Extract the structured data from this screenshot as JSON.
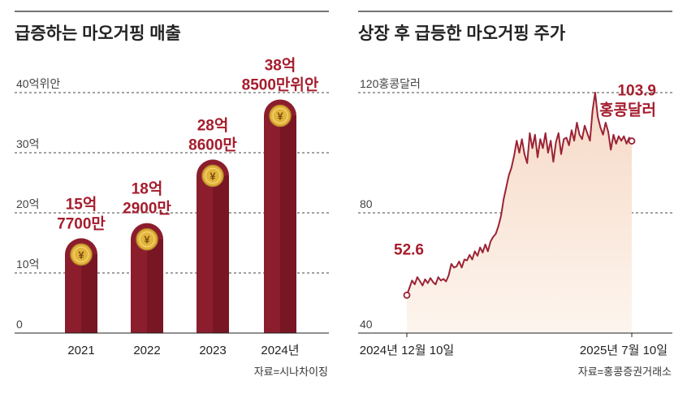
{
  "chart_data": [
    {
      "type": "bar",
      "title": "급증하는 마오거핑 매출",
      "unit_label": "40억위안",
      "yticks": [
        {
          "value": 0,
          "label": "0"
        },
        {
          "value": 10,
          "label": "10억"
        },
        {
          "value": 20,
          "label": "20억"
        },
        {
          "value": 30,
          "label": "30억"
        },
        {
          "value": 40,
          "label": "40억위안"
        }
      ],
      "ylim": [
        0,
        40
      ],
      "categories": [
        "2021",
        "2022",
        "2023",
        "2024년"
      ],
      "values": [
        15.77,
        18.29,
        28.86,
        38.85
      ],
      "data_labels": [
        [
          "15억",
          "7700만"
        ],
        [
          "18억",
          "2900만"
        ],
        [
          "28억",
          "8600만"
        ],
        [
          "38억",
          "8500만위안"
        ]
      ],
      "grid": true,
      "source": "자료=시나차이징"
    },
    {
      "type": "area",
      "title": "상장 후 급등한 마오거핑 주가",
      "yticks": [
        {
          "value": 40,
          "label": "40"
        },
        {
          "value": 80,
          "label": "80"
        },
        {
          "value": 120,
          "label": "120홍콩달러"
        }
      ],
      "ylim": [
        40,
        120
      ],
      "xlabels": [
        "2024년 12월 10일",
        "2025년 7월 10일"
      ],
      "start": {
        "value": 52.6,
        "label": "52.6"
      },
      "end": {
        "value": 103.9,
        "label": [
          "103.9",
          "홍콩달러"
        ]
      },
      "values": [
        52.6,
        55.0,
        57.5,
        56.2,
        58.6,
        57.3,
        55.8,
        57.9,
        56.6,
        58.3,
        57.0,
        56.2,
        58.6,
        57.5,
        58.0,
        57.2,
        59.2,
        63.0,
        61.8,
        62.2,
        63.8,
        61.8,
        64.5,
        64.2,
        66.0,
        64.5,
        67.2,
        65.7,
        68.5,
        66.8,
        69.5,
        67.2,
        70.5,
        72.0,
        73.0,
        75.5,
        79.0,
        84.5,
        88.5,
        92.5,
        95.0,
        99.0,
        104.0,
        100.0,
        104.5,
        99.5,
        96.5,
        106.5,
        101.5,
        106.0,
        98.5,
        104.5,
        101.5,
        106.5,
        100.0,
        104.0,
        97.0,
        103.5,
        106.5,
        99.5,
        104.5,
        105.0,
        102.5,
        107.5,
        104.0,
        110.0,
        106.0,
        104.5,
        109.0,
        106.5,
        104.0,
        114.0,
        120.0,
        112.0,
        108.5,
        106.0,
        110.0,
        107.0,
        101.0,
        106.0,
        103.0,
        105.5,
        104.0,
        105.5,
        103.0,
        105.0,
        103.9
      ],
      "source": "자료=홍콩증권거래소"
    }
  ],
  "colors": {
    "bar": "#8b1d2c",
    "bar_dark": "#6d1320",
    "label": "#a51d2d",
    "line": "#9b2335",
    "area_top": "#f6d9c6",
    "area_bottom": "#fdf5ee",
    "coin": "#e3b43c",
    "text": "#222222",
    "grid": "#444444"
  }
}
